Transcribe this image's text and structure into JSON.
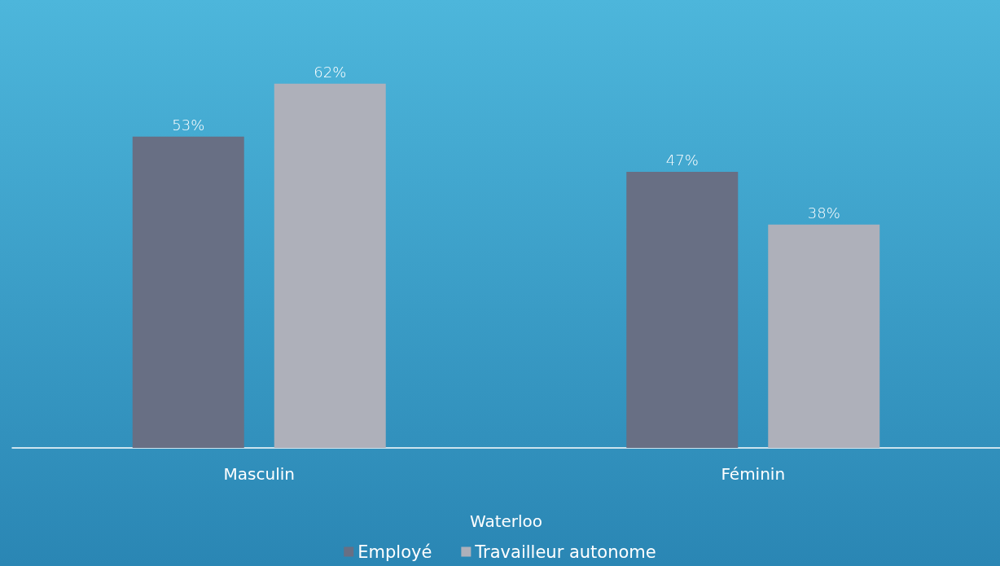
{
  "chart_data": {
    "type": "bar",
    "xlabel": "Waterloo",
    "categories": [
      "Masculin",
      "Féminin"
    ],
    "legend": "bottom",
    "series": [
      {
        "name": "Employé",
        "color": "#686f84",
        "values": [
          53,
          47
        ],
        "value_labels": [
          "53%",
          "47%"
        ]
      },
      {
        "name": "Travailleur autonome",
        "color": "#aeb0ba",
        "values": [
          62,
          38
        ],
        "value_labels": [
          "62%",
          "38%"
        ]
      }
    ]
  }
}
